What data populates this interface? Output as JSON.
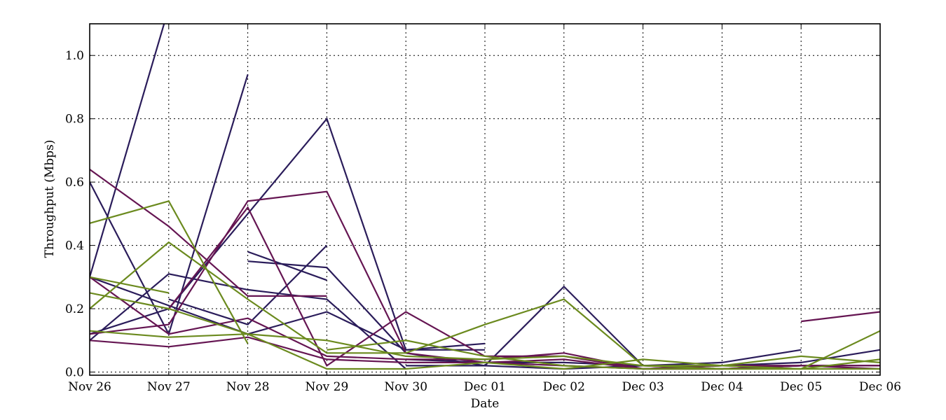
{
  "chart_data": {
    "type": "line",
    "xlabel": "Date",
    "ylabel": "Throughput (Mbps)",
    "x": [
      "Nov 26",
      "Nov 27",
      "Nov 28",
      "Nov 29",
      "Nov 30",
      "Dec 01",
      "Dec 02",
      "Dec 03",
      "Dec 04",
      "Dec 05",
      "Dec 06"
    ],
    "ylim": [
      -0.01,
      1.1
    ],
    "yticks": [
      "0.0",
      "0.2",
      "0.4",
      "0.6",
      "0.8",
      "1.0"
    ],
    "grid": true,
    "colors": {
      "navy": "#2a1c5a",
      "plum": "#651552",
      "olive": "#6b8a1e"
    },
    "series": [
      {
        "color": "navy",
        "values": [
          0.3,
          1.15,
          null,
          null,
          null,
          null,
          null,
          null,
          null,
          null,
          null
        ]
      },
      {
        "color": "navy",
        "values": [
          0.6,
          0.12,
          0.94,
          null,
          null,
          null,
          null,
          null,
          null,
          null,
          null
        ]
      },
      {
        "color": "navy",
        "values": [
          0.1,
          0.31,
          0.26,
          0.23,
          0.01,
          null,
          null,
          null,
          null,
          null,
          null
        ]
      },
      {
        "color": "navy",
        "values": [
          0.12,
          0.2,
          0.5,
          0.8,
          0.07,
          0.09,
          null,
          null,
          null,
          null,
          null
        ]
      },
      {
        "color": "navy",
        "values": [
          0.3,
          0.21,
          0.12,
          0.19,
          0.07,
          0.07,
          null,
          null,
          null,
          null,
          null
        ]
      },
      {
        "color": "navy",
        "values": [
          null,
          0.23,
          0.15,
          0.4,
          null,
          null,
          null,
          null,
          null,
          null,
          null
        ]
      },
      {
        "color": "navy",
        "values": [
          null,
          null,
          0.38,
          0.29,
          null,
          null,
          null,
          null,
          null,
          null,
          null
        ]
      },
      {
        "color": "navy",
        "values": [
          null,
          null,
          0.35,
          0.33,
          0.06,
          0.02,
          0.27,
          0.02,
          0.02,
          0.03,
          0.07
        ]
      },
      {
        "color": "navy",
        "values": [
          null,
          null,
          null,
          null,
          0.02,
          0.02,
          0.01,
          0.02,
          0.03,
          0.07,
          null
        ]
      },
      {
        "color": "navy",
        "values": [
          null,
          null,
          null,
          null,
          0.04,
          0.03,
          0.03,
          0.02,
          0.01,
          0.02,
          0.02
        ]
      },
      {
        "color": "plum",
        "values": [
          0.64,
          0.46,
          0.24,
          0.24,
          null,
          null,
          null,
          null,
          null,
          null,
          null
        ]
      },
      {
        "color": "plum",
        "values": [
          0.3,
          0.12,
          0.17,
          0.05,
          0.04,
          0.04,
          0.06,
          0.01,
          0.02,
          0.02,
          0.01
        ]
      },
      {
        "color": "plum",
        "values": [
          0.12,
          0.15,
          0.54,
          0.57,
          0.06,
          0.03,
          0.04,
          0.01,
          0.01,
          0.02,
          0.02
        ]
      },
      {
        "color": "plum",
        "values": [
          0.1,
          0.08,
          0.11,
          0.04,
          0.03,
          0.03,
          0.02,
          0.01,
          0.01,
          0.02,
          0.02
        ]
      },
      {
        "color": "plum",
        "values": [
          null,
          0.2,
          0.52,
          0.02,
          0.19,
          0.05,
          0.05,
          0.01,
          0.02,
          0.02,
          0.02
        ]
      },
      {
        "color": "plum",
        "values": [
          null,
          null,
          null,
          null,
          null,
          null,
          null,
          null,
          null,
          0.16,
          0.19
        ]
      },
      {
        "color": "olive",
        "values": [
          0.47,
          0.54,
          0.09,
          null,
          null,
          null,
          null,
          null,
          null,
          null,
          null
        ]
      },
      {
        "color": "olive",
        "values": [
          0.2,
          0.41,
          0.23,
          0.06,
          0.06,
          0.15,
          0.23,
          0.02,
          0.01,
          0.01,
          0.01
        ]
      },
      {
        "color": "olive",
        "values": [
          0.3,
          0.25,
          null,
          null,
          null,
          null,
          null,
          null,
          null,
          null,
          null
        ]
      },
      {
        "color": "olive",
        "values": [
          0.25,
          0.2,
          0.12,
          0.1,
          0.05,
          0.04,
          0.05,
          0.02,
          0.02,
          0.01,
          0.04
        ]
      },
      {
        "color": "olive",
        "values": [
          0.13,
          0.11,
          0.12,
          0.01,
          0.01,
          0.03,
          0.01,
          0.04,
          0.02,
          0.05,
          0.03
        ]
      },
      {
        "color": "olive",
        "values": [
          null,
          null,
          null,
          0.07,
          0.1,
          0.05,
          0.02,
          0.01,
          0.01,
          0.01,
          0.13
        ]
      }
    ]
  }
}
